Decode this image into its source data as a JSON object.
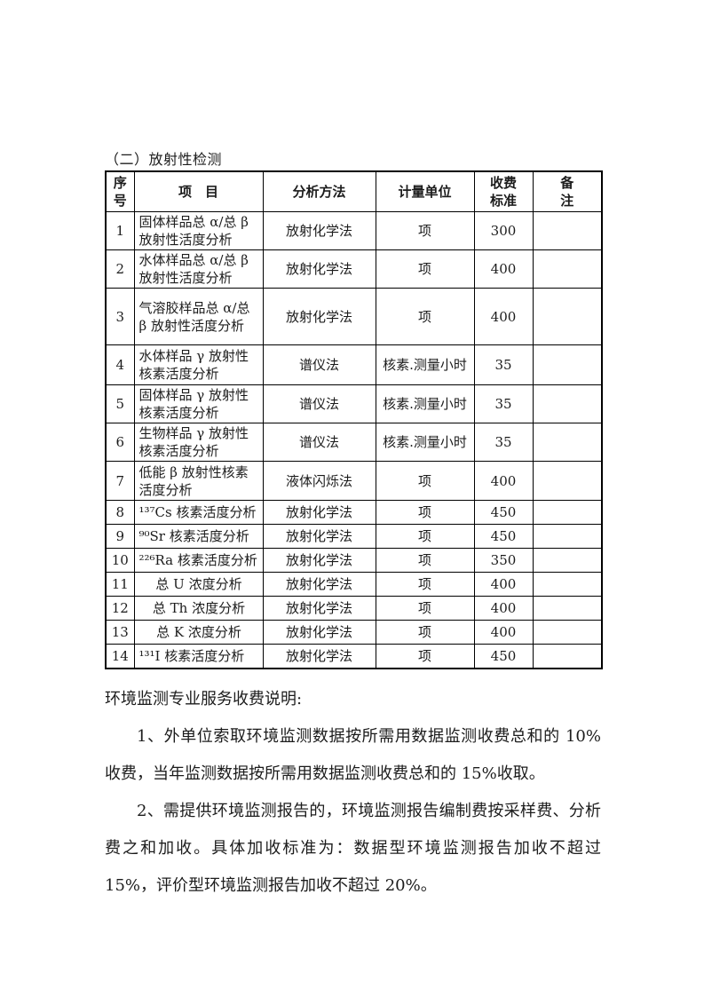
{
  "section_title": "（二）放射性检测",
  "table": {
    "headers": [
      {
        "key": "no",
        "label": "序\n号"
      },
      {
        "key": "item",
        "label": "项　目"
      },
      {
        "key": "method",
        "label": "分析方法"
      },
      {
        "key": "unit",
        "label": "计量单位"
      },
      {
        "key": "fee",
        "label": "收费\n标准"
      },
      {
        "key": "note",
        "label": "备\n注"
      }
    ],
    "rows": [
      {
        "no": "1",
        "item": "固体样品总 α/总 β 放射性活度分析",
        "method": "放射化学法",
        "unit": "项",
        "fee": "300",
        "note": ""
      },
      {
        "no": "2",
        "item": "水体样品总 α/总 β 放射性活度分析",
        "method": "放射化学法",
        "unit": "项",
        "fee": "400",
        "note": ""
      },
      {
        "no": "3",
        "item": "气溶胶样品总 α/总 β 放射性活度分析",
        "method": "放射化学法",
        "unit": "项",
        "fee": "400",
        "note": ""
      },
      {
        "no": "4",
        "item": "水体样品 γ 放射性核素活度分析",
        "method": "谱仪法",
        "unit": "核素.测量小时",
        "fee": "35",
        "note": ""
      },
      {
        "no": "5",
        "item": "固体样品 γ 放射性核素活度分析",
        "method": "谱仪法",
        "unit": "核素.测量小时",
        "fee": "35",
        "note": ""
      },
      {
        "no": "6",
        "item": "生物样品 γ 放射性核素活度分析",
        "method": "谱仪法",
        "unit": "核素.测量小时",
        "fee": "35",
        "note": ""
      },
      {
        "no": "7",
        "item": "低能 β 放射性核素活度分析",
        "method": "液体闪烁法",
        "unit": "项",
        "fee": "400",
        "note": ""
      },
      {
        "no": "8",
        "item": "¹³⁷Cs 核素活度分析",
        "method": "放射化学法",
        "unit": "项",
        "fee": "450",
        "note": ""
      },
      {
        "no": "9",
        "item": "⁹⁰Sr 核素活度分析",
        "method": "放射化学法",
        "unit": "项",
        "fee": "450",
        "note": ""
      },
      {
        "no": "10",
        "item": "²²⁶Ra 核素活度分析",
        "method": "放射化学法",
        "unit": "项",
        "fee": "350",
        "note": ""
      },
      {
        "no": "11",
        "item": "总 U 浓度分析",
        "item_align": "center",
        "method": "放射化学法",
        "unit": "项",
        "fee": "400",
        "note": ""
      },
      {
        "no": "12",
        "item": "总 Th 浓度分析",
        "item_align": "center",
        "method": "放射化学法",
        "unit": "项",
        "fee": "400",
        "note": ""
      },
      {
        "no": "13",
        "item": "总 K 浓度分析",
        "item_align": "center",
        "method": "放射化学法",
        "unit": "项",
        "fee": "400",
        "note": ""
      },
      {
        "no": "14",
        "item": "¹³¹I 核素活度分析",
        "method": "放射化学法",
        "unit": "项",
        "fee": "450",
        "note": ""
      }
    ]
  },
  "notes": {
    "title": "环境监测专业服务收费说明:",
    "paragraphs": [
      "1、外单位索取环境监测数据按所需用数据监测收费总和的 10%收费，当年监测数据按所需用数据监测收费总和的 15%收取。",
      "2、需提供环境监测报告的，环境监测报告编制费按采样费、分析费之和加收。具体加收标准为：数据型环境监测报告加收不超过 15%，评价型环境监测报告加收不超过 20%。"
    ]
  }
}
